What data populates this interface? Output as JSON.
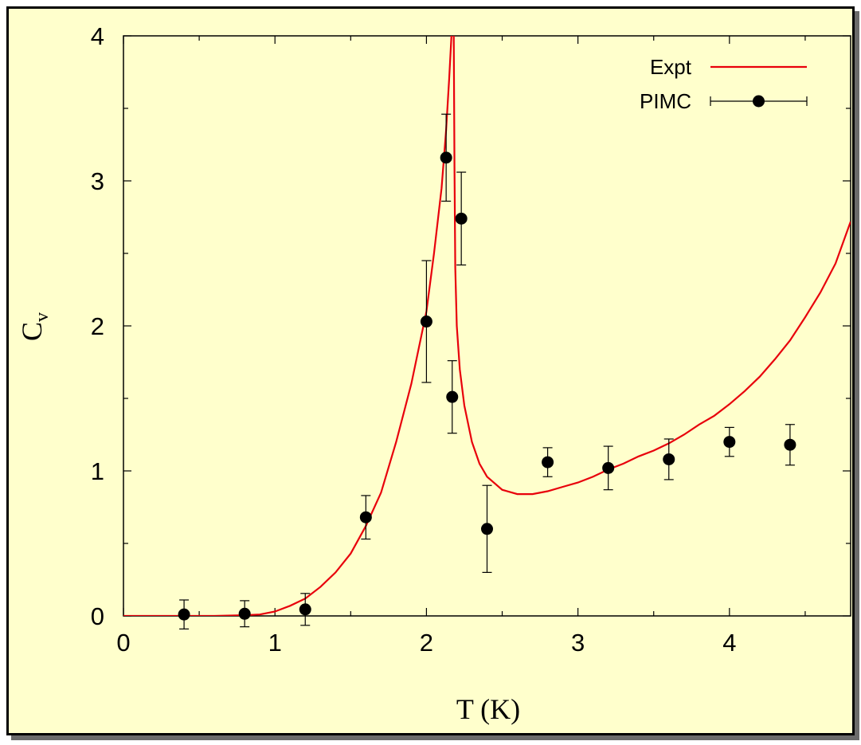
{
  "chart_data": {
    "type": "line",
    "xlabel": "T (K)",
    "ylabel_main": "C",
    "ylabel_sub": "v",
    "xlim": [
      0,
      4.8
    ],
    "ylim": [
      0,
      4
    ],
    "xticks": [
      0,
      1,
      2,
      3,
      4
    ],
    "yticks": [
      0,
      1,
      2,
      3,
      4
    ],
    "grid": false,
    "legend": "top-right",
    "series": [
      {
        "name": "Expt",
        "kind": "line",
        "color": "#e8000b",
        "points": [
          [
            0,
            0
          ],
          [
            0.6,
            0.0
          ],
          [
            0.8,
            0.005
          ],
          [
            0.9,
            0.01
          ],
          [
            1.0,
            0.03
          ],
          [
            1.1,
            0.07
          ],
          [
            1.2,
            0.12
          ],
          [
            1.3,
            0.2
          ],
          [
            1.4,
            0.3
          ],
          [
            1.5,
            0.43
          ],
          [
            1.6,
            0.62
          ],
          [
            1.7,
            0.85
          ],
          [
            1.8,
            1.2
          ],
          [
            1.9,
            1.6
          ],
          [
            2.0,
            2.1
          ],
          [
            2.05,
            2.5
          ],
          [
            2.1,
            2.95
          ],
          [
            2.13,
            3.35
          ],
          [
            2.15,
            3.7
          ],
          [
            2.165,
            4.0
          ]
        ]
      },
      {
        "name": "Expt-upper",
        "kind": "line",
        "color": "#e8000b",
        "points": [
          [
            2.18,
            4.0
          ],
          [
            2.185,
            3.1
          ],
          [
            2.19,
            2.4
          ],
          [
            2.2,
            2.0
          ],
          [
            2.22,
            1.7
          ],
          [
            2.25,
            1.45
          ],
          [
            2.3,
            1.2
          ],
          [
            2.35,
            1.05
          ],
          [
            2.4,
            0.96
          ],
          [
            2.5,
            0.87
          ],
          [
            2.6,
            0.84
          ],
          [
            2.7,
            0.84
          ],
          [
            2.8,
            0.86
          ],
          [
            2.9,
            0.89
          ],
          [
            3.0,
            0.92
          ],
          [
            3.1,
            0.96
          ],
          [
            3.2,
            1.01
          ],
          [
            3.3,
            1.05
          ],
          [
            3.4,
            1.1
          ],
          [
            3.5,
            1.14
          ],
          [
            3.6,
            1.19
          ],
          [
            3.7,
            1.25
          ],
          [
            3.8,
            1.32
          ],
          [
            3.9,
            1.38
          ],
          [
            4.0,
            1.46
          ],
          [
            4.1,
            1.55
          ],
          [
            4.2,
            1.65
          ],
          [
            4.3,
            1.77
          ],
          [
            4.4,
            1.9
          ],
          [
            4.5,
            2.06
          ],
          [
            4.6,
            2.23
          ],
          [
            4.7,
            2.43
          ],
          [
            4.8,
            2.72
          ]
        ]
      },
      {
        "name": "PIMC",
        "kind": "errorbar",
        "color": "#000000",
        "points": [
          {
            "x": 0.4,
            "y": 0.01,
            "err": 0.1
          },
          {
            "x": 0.8,
            "y": 0.015,
            "err": 0.09
          },
          {
            "x": 1.2,
            "y": 0.045,
            "err": 0.11
          },
          {
            "x": 1.6,
            "y": 0.68,
            "err": 0.15
          },
          {
            "x": 2.0,
            "y": 2.03,
            "err": 0.42
          },
          {
            "x": 2.13,
            "y": 3.16,
            "err": 0.3
          },
          {
            "x": 2.17,
            "y": 1.51,
            "err": 0.25
          },
          {
            "x": 2.23,
            "y": 2.74,
            "err": 0.32
          },
          {
            "x": 2.4,
            "y": 0.6,
            "err": 0.3
          },
          {
            "x": 2.8,
            "y": 1.06,
            "err": 0.1
          },
          {
            "x": 3.2,
            "y": 1.02,
            "err": 0.15
          },
          {
            "x": 3.6,
            "y": 1.08,
            "err": 0.14
          },
          {
            "x": 4.0,
            "y": 1.2,
            "err": 0.1
          },
          {
            "x": 4.4,
            "y": 1.18,
            "err": 0.14
          }
        ]
      }
    ],
    "legend_entries": [
      {
        "name": "Expt",
        "kind": "line",
        "color": "#e8000b"
      },
      {
        "name": "PIMC",
        "kind": "errorbar",
        "color": "#000000"
      }
    ]
  }
}
